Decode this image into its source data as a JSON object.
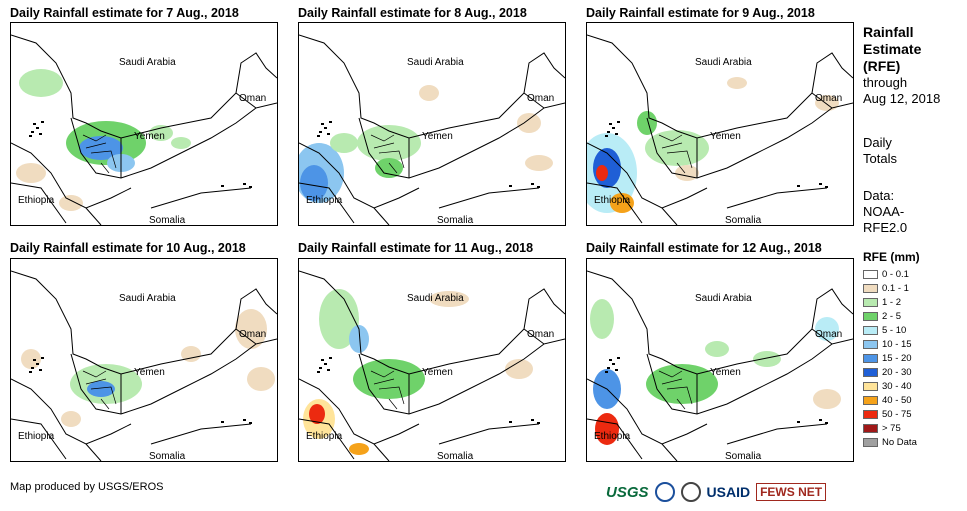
{
  "panels": [
    {
      "title": "Daily Rainfall estimate for 7 Aug., 2018"
    },
    {
      "title": "Daily Rainfall estimate for 8 Aug., 2018"
    },
    {
      "title": "Daily Rainfall estimate for 9 Aug., 2018"
    },
    {
      "title": "Daily Rainfall estimate for 10 Aug., 2018"
    },
    {
      "title": "Daily Rainfall estimate for 11 Aug., 2018"
    },
    {
      "title": "Daily Rainfall estimate for 12 Aug., 2018"
    }
  ],
  "map_labels": {
    "saudi": "Saudi Arabia",
    "oman": "Oman",
    "yemen": "Yemen",
    "ethiopia": "Ethiopia",
    "somalia": "Somalia"
  },
  "sidebar": {
    "title_line1": "Rainfall",
    "title_line2": "Estimate",
    "title_line3": "(RFE)",
    "through": "through",
    "date": "Aug 12, 2018",
    "daily": "Daily",
    "totals": "Totals",
    "data_label": "Data:",
    "data_src1": "NOAA-",
    "data_src2": "RFE2.0"
  },
  "legend": {
    "title": "RFE (mm)",
    "items": [
      {
        "label": "0 - 0.1",
        "color": "#ffffff"
      },
      {
        "label": "0.1 - 1",
        "color": "#f0dcc0"
      },
      {
        "label": "1 - 2",
        "color": "#b8eab0"
      },
      {
        "label": "2 - 5",
        "color": "#6fd26a"
      },
      {
        "label": "5 - 10",
        "color": "#b9ecf6"
      },
      {
        "label": "10 - 15",
        "color": "#8cc6f0"
      },
      {
        "label": "15 - 20",
        "color": "#4d94e6"
      },
      {
        "label": "20 - 30",
        "color": "#1f5fd6"
      },
      {
        "label": "30 - 40",
        "color": "#ffe49a"
      },
      {
        "label": "40 - 50",
        "color": "#f5a21a"
      },
      {
        "label": "50 - 75",
        "color": "#ec2a10"
      },
      {
        "label": "> 75",
        "color": "#a01818"
      },
      {
        "label": "No Data",
        "color": "#a0a0a0"
      }
    ]
  },
  "footer": "Map produced by USGS/EROS",
  "logos": {
    "usgs": "USGS",
    "usaid": "USAID",
    "fews": "FEWS NET"
  }
}
